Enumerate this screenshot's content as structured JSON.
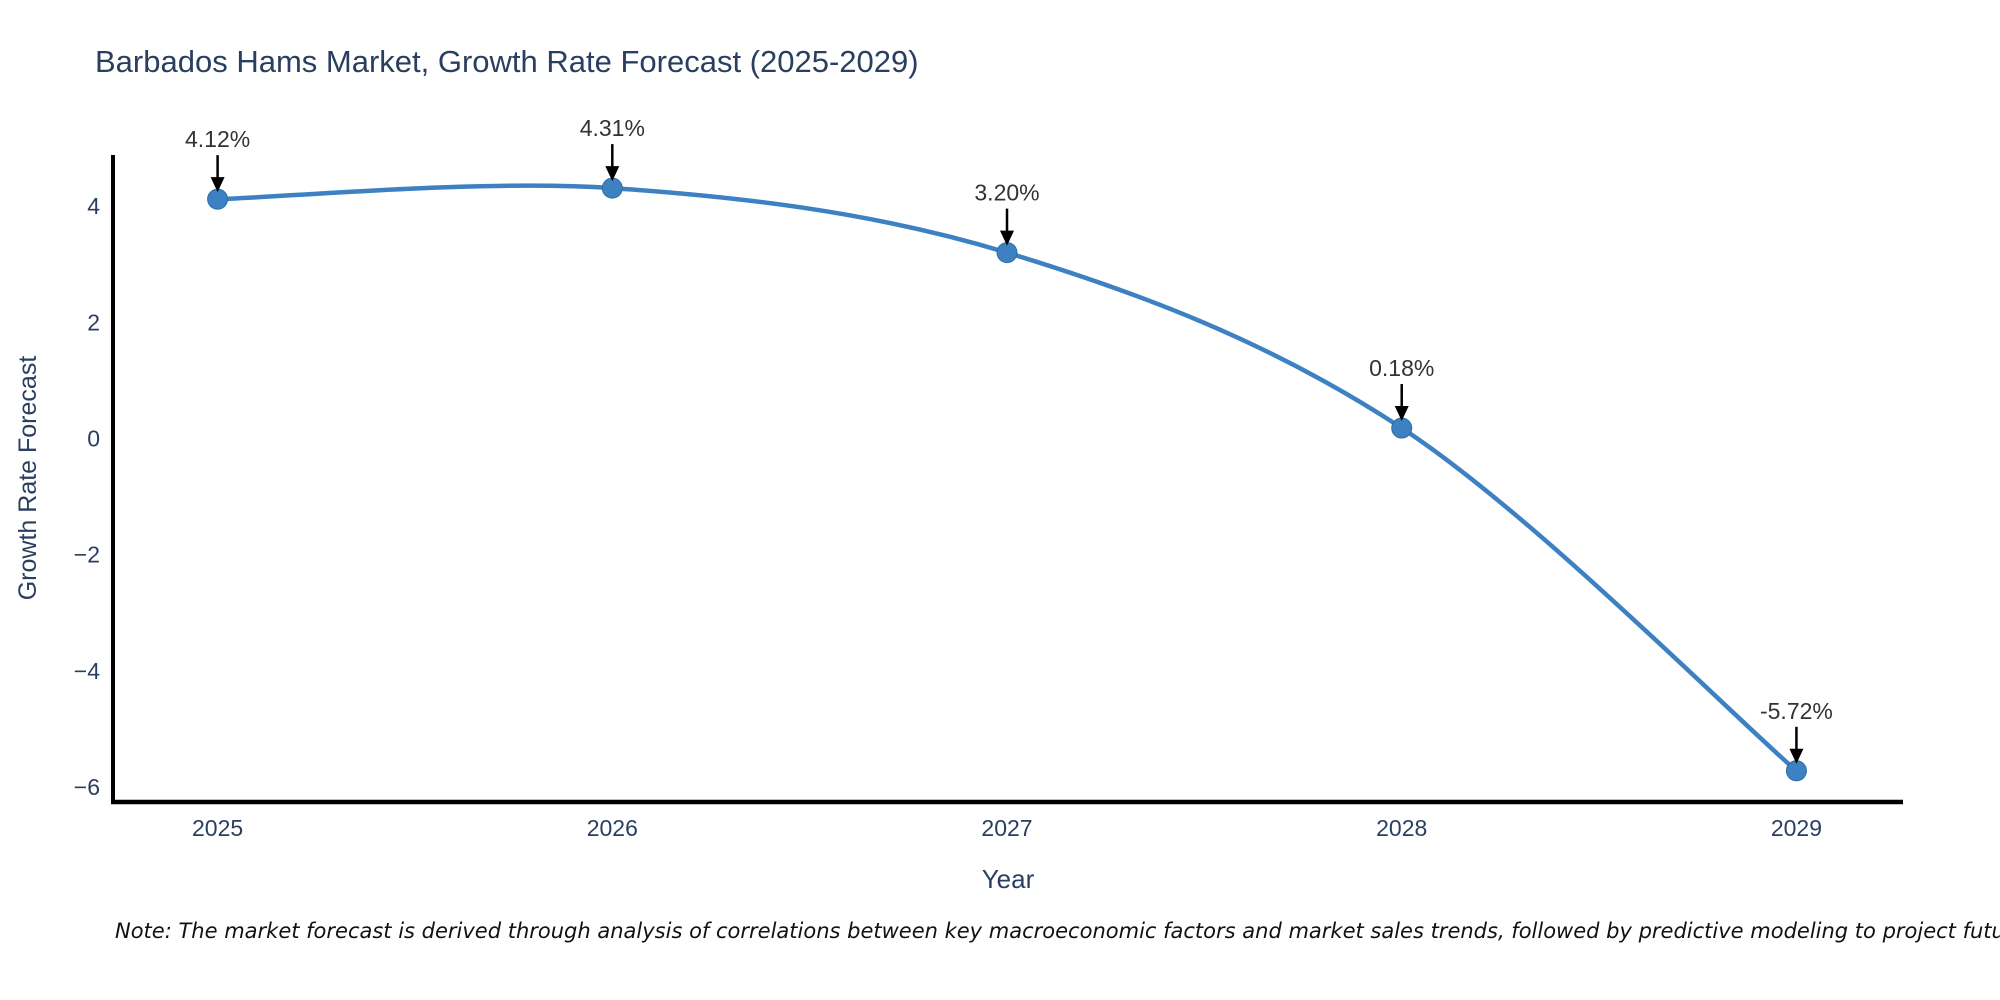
{
  "chart_data": {
    "type": "line",
    "title": "Barbados Hams Market, Growth Rate Forecast (2025-2029)",
    "xlabel": "Year",
    "ylabel": "Growth Rate Forecast",
    "x": [
      2025,
      2026,
      2027,
      2028,
      2029
    ],
    "series": [
      {
        "name": "Growth Rate Forecast",
        "values": [
          4.12,
          4.31,
          3.2,
          0.18,
          -5.72
        ],
        "point_labels": [
          "4.12%",
          "4.31%",
          "3.20%",
          "0.18%",
          "-5.72%"
        ]
      }
    ],
    "x_tick_labels": [
      "2025",
      "2026",
      "2027",
      "2028",
      "2029"
    ],
    "y_ticks": [
      4,
      2,
      0,
      -2,
      -4,
      -6
    ],
    "y_tick_labels": [
      "4",
      "2",
      "0",
      "−2",
      "−4",
      "−6"
    ],
    "xlim": [
      2024.735,
      2029.27
    ],
    "ylim": [
      -6.24,
      4.88
    ],
    "grid": false,
    "legend_position": "none",
    "colors": {
      "line": "#3d81c2",
      "marker": "#3d81c2",
      "marker_edge": "#2f6ba3",
      "arrow": "#000000",
      "axis": "#000000",
      "heading_text": "#2a3f5f",
      "annotation_text": "#333333",
      "note_text": "#111111",
      "background": "#ffffff"
    },
    "note": "Note: The market forecast is derived through analysis of correlations between key macroeconomic factors and market sales trends, followed by predictive modeling to project future sales"
  }
}
